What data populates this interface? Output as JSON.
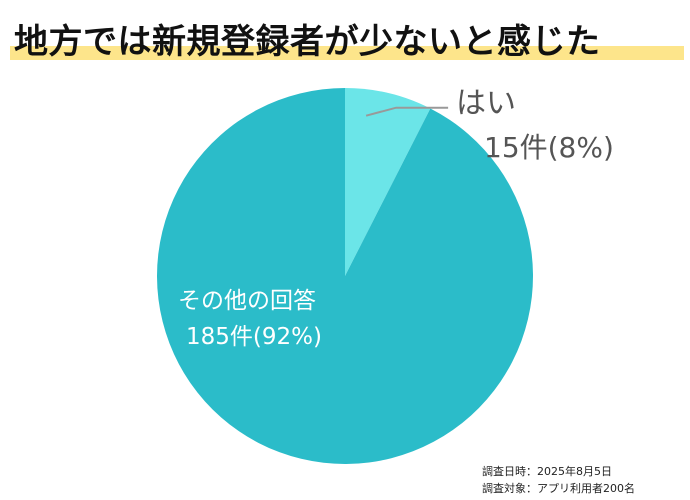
{
  "chart_data": {
    "type": "pie",
    "title": "地方では新規登録者が少ないと感じた",
    "unit": "件",
    "slices": [
      {
        "label": "はい",
        "count": 15,
        "percent": 8,
        "value_text": "15件(8%)",
        "color": "#6be5e8"
      },
      {
        "label": "その他の回答",
        "count": 185,
        "percent": 92,
        "value_text": "185件(92%)",
        "color": "#2bbcc9"
      }
    ],
    "notes": [
      "調査日時：2025年8月5日",
      "調査対象：アプリ利用者200名"
    ]
  },
  "colors": {
    "title_highlight": "#fde58b",
    "leader_line": "#999999",
    "outside_label": "#555555",
    "inside_label": "#ffffff"
  }
}
